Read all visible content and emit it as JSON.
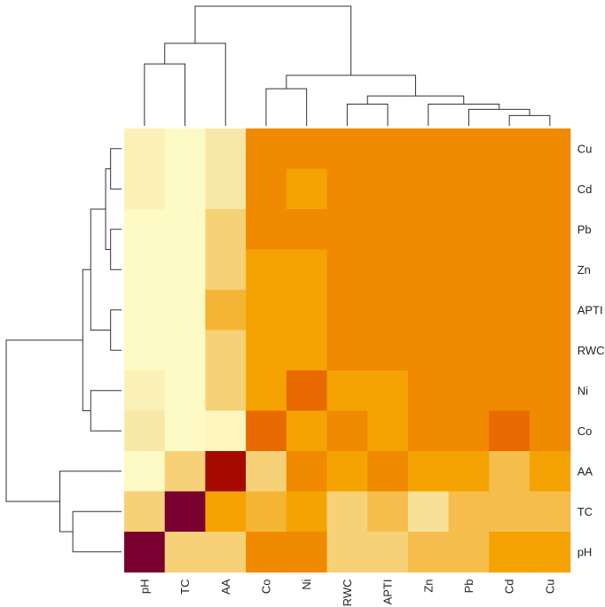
{
  "chart_data": {
    "type": "heatmap",
    "title": "",
    "xlabel": "",
    "ylabel": "",
    "columns": [
      "pH",
      "TC",
      "AA",
      "Co",
      "Ni",
      "RWC",
      "APTI",
      "Zn",
      "Pb",
      "Cd",
      "Cu"
    ],
    "rows": [
      "Cu",
      "Cd",
      "Pb",
      "Zn",
      "APTI",
      "RWC",
      "Ni",
      "Co",
      "AA",
      "TC",
      "pH"
    ],
    "values": [
      [
        0.15,
        0.05,
        0.25,
        1.05,
        1.05,
        1.05,
        1.05,
        1.05,
        1.05,
        1.05,
        1.05
      ],
      [
        0.15,
        0.05,
        0.25,
        1.05,
        0.85,
        1.05,
        1.05,
        1.05,
        1.05,
        1.05,
        1.05
      ],
      [
        0.05,
        0.05,
        0.4,
        1.05,
        1.05,
        1.05,
        1.05,
        1.05,
        1.05,
        1.05,
        1.05
      ],
      [
        0.05,
        0.05,
        0.4,
        0.85,
        0.85,
        1.05,
        1.05,
        1.05,
        1.05,
        1.05,
        1.05
      ],
      [
        0.05,
        0.05,
        0.65,
        0.85,
        0.85,
        1.05,
        1.05,
        1.05,
        1.05,
        1.05,
        1.05
      ],
      [
        0.05,
        0.05,
        0.4,
        0.85,
        0.85,
        1.05,
        1.05,
        1.05,
        1.05,
        1.05,
        1.05
      ],
      [
        0.15,
        0.05,
        0.4,
        0.85,
        1.3,
        0.85,
        0.85,
        1.05,
        1.05,
        1.05,
        1.05
      ],
      [
        0.25,
        0.05,
        0.1,
        1.3,
        0.85,
        1.05,
        0.85,
        1.05,
        1.05,
        1.3,
        1.05
      ],
      [
        0.05,
        0.4,
        2.25,
        0.4,
        1.05,
        0.85,
        1.05,
        0.85,
        0.85,
        0.55,
        0.85
      ],
      [
        0.4,
        2.6,
        0.85,
        0.65,
        0.85,
        0.4,
        0.55,
        0.3,
        0.55,
        0.55,
        0.55
      ],
      [
        2.6,
        0.4,
        0.4,
        1.05,
        1.05,
        0.4,
        0.4,
        0.55,
        0.55,
        0.85,
        0.85
      ]
    ],
    "color_scale": [
      {
        "value": 0.0,
        "color": "#ffffcc"
      },
      {
        "value": 0.25,
        "color": "#f8e8a8"
      },
      {
        "value": 0.5,
        "color": "#f5c258"
      },
      {
        "value": 0.85,
        "color": "#f4a303"
      },
      {
        "value": 1.05,
        "color": "#f08a00"
      },
      {
        "value": 1.3,
        "color": "#e86a00"
      },
      {
        "value": 2.25,
        "color": "#a40a00"
      },
      {
        "value": 2.6,
        "color": "#7a0030"
      }
    ],
    "column_dendrogram": {
      "merges": [
        [
          9,
          10,
          0.5
        ],
        [
          8,
          -1,
          0.8
        ],
        [
          7,
          -2,
          1.05
        ],
        [
          5,
          6,
          1.05
        ],
        [
          -4,
          -3,
          1.45
        ],
        [
          3,
          4,
          1.8
        ],
        [
          -6,
          -5,
          2.45
        ],
        [
          0,
          1,
          3.0
        ],
        [
          -8,
          2,
          4.0
        ],
        [
          -9,
          -7,
          5.8
        ]
      ],
      "max_height": 5.8
    },
    "row_dendrogram": {
      "merges": [
        [
          0,
          1,
          0.55
        ],
        [
          2,
          3,
          0.55
        ],
        [
          4,
          5,
          0.55
        ],
        [
          -1,
          -2,
          0.8
        ],
        [
          -3,
          -4,
          1.55
        ],
        [
          6,
          7,
          1.55
        ],
        [
          -5,
          -6,
          1.95
        ],
        [
          9,
          10,
          2.45
        ],
        [
          8,
          -8,
          3.1
        ],
        [
          -7,
          -9,
          5.8
        ]
      ],
      "max_height": 5.8
    }
  }
}
